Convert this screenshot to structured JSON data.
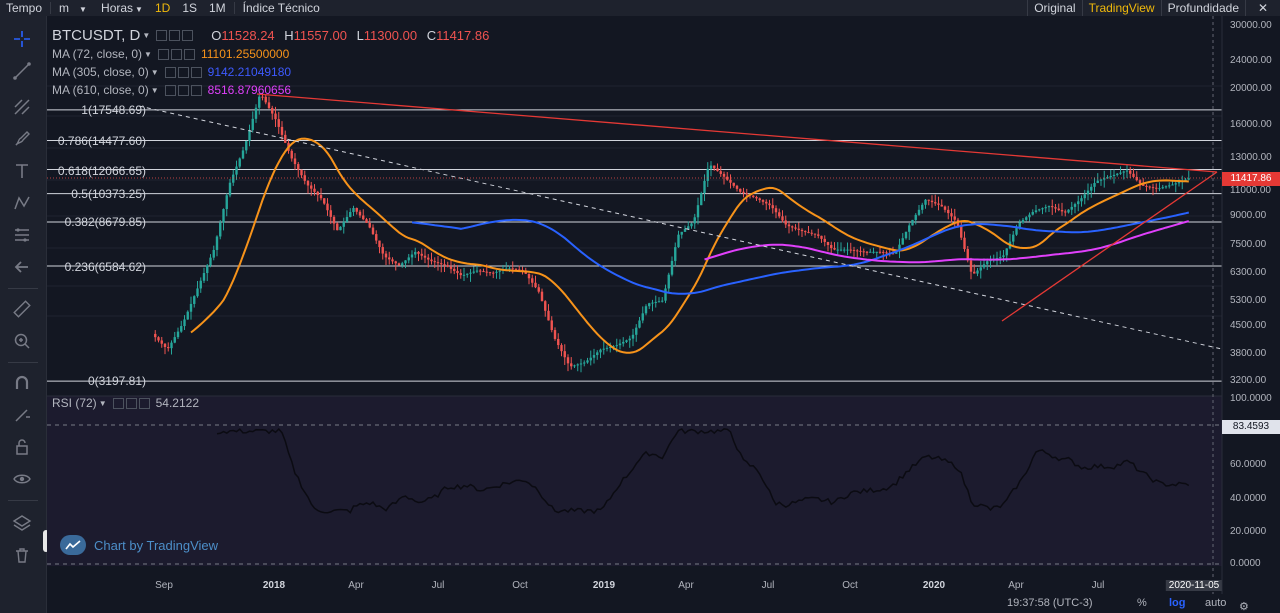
{
  "toolbar": {
    "tempo": "Tempo",
    "unit": "m",
    "hours": "Horas",
    "intervals": [
      "1D",
      "1S",
      "1M"
    ],
    "active_interval": "1D",
    "indicator": "Índice Técnico",
    "right": [
      "Original",
      "TradingView",
      "Profundidade"
    ],
    "active_right": "TradingView"
  },
  "sidebar_icons": [
    "crosshair-icon",
    "trendline-icon",
    "pitchfork-icon",
    "brush-icon",
    "text-icon",
    "pattern-icon",
    "fib-icon",
    "back-arrow-icon",
    "ruler-icon",
    "zoom-icon",
    "magnet-icon",
    "lock-draw-icon",
    "lock-icon",
    "eye-icon",
    "layers-icon",
    "trash-icon"
  ],
  "legend": {
    "symbol": "BTCUSDT, D",
    "ohlc": {
      "o_label": "O",
      "o": "11528.24",
      "h_label": "H",
      "h": "11557.00",
      "l_label": "L",
      "l": "11300.00",
      "c_label": "C",
      "c": "11417.86"
    },
    "ma": [
      {
        "label": "MA (72, close, 0)",
        "value": "11101.25500000",
        "color": "#f7931a"
      },
      {
        "label": "MA (305, close, 0)",
        "value": "9142.21049180",
        "color": "#3d5afe"
      },
      {
        "label": "MA (610, close, 0)",
        "value": "8516.87960656",
        "color": "#e040fb"
      }
    ],
    "rsi": {
      "label": "RSI (72)",
      "value": "54.2122"
    }
  },
  "fib_levels": [
    {
      "label": "1(17548.69)",
      "price": 17548.69
    },
    {
      "label": "0.786(14477.60)",
      "price": 14477.6
    },
    {
      "label": "0.618(12066.65)",
      "price": 12066.65
    },
    {
      "label": "0.5(10373.25)",
      "price": 10373.25
    },
    {
      "label": "0.382(8679.85)",
      "price": 8679.85
    },
    {
      "label": "0.236(6584.62)",
      "price": 6584.62
    },
    {
      "label": "0(3197.81)",
      "price": 3197.81
    }
  ],
  "price_axis": [
    "30000.00",
    "24000.00",
    "20000.00",
    "16000.00",
    "13000.00",
    "11000.00",
    "9000.00",
    "7500.00",
    "6300.00",
    "5300.00",
    "4500.00",
    "3800.00",
    "3200.00"
  ],
  "last_price": "11417.86",
  "rsi_axis": [
    "100.0000",
    "60.0000",
    "40.0000",
    "20.0000",
    "0.0000"
  ],
  "rsi_level": "83.4593",
  "time_axis": [
    "Sep",
    "2018",
    "Apr",
    "Jul",
    "Oct",
    "2019",
    "Apr",
    "Jul",
    "Oct",
    "2020",
    "Apr",
    "Jul",
    "2020-11-05"
  ],
  "status": {
    "clock": "19:37:58 (UTC-3)",
    "percent": "%",
    "log": "log",
    "auto": "auto"
  },
  "watermark": "Chart by TradingView",
  "chart_data": {
    "type": "line",
    "series": [
      {
        "values": [
          4300,
          3900,
          4600,
          5800,
          7300,
          11000,
          14000,
          19500,
          16500,
          13000,
          11000,
          10000,
          8200,
          9500,
          8500,
          7000,
          6600,
          7200,
          6800,
          6600,
          6200,
          6400,
          6300,
          6500,
          6400,
          5600,
          4200,
          3500,
          3600,
          3900,
          4000,
          4200,
          5200,
          5300,
          8000,
          8700,
          12500,
          11500,
          10500,
          10100,
          9600,
          8500,
          8200,
          8000,
          7300,
          7300,
          7200,
          7200,
          7100,
          8600,
          10000,
          9600,
          8700,
          6200,
          6800,
          7000,
          8600,
          9300,
          9600,
          9200,
          10000,
          11200,
          11600,
          12000,
          10900,
          10700,
          11000,
          11417
        ]
      },
      {
        "name": "MA (72, close, 0)"
      },
      {
        "name": "MA (305, close, 0)"
      },
      {
        "name": "MA (610, close, 0)"
      },
      {
        "name": "RSI (72)"
      }
    ],
    "y_scale": "log",
    "ylim": [
      3000,
      30000
    ]
  }
}
